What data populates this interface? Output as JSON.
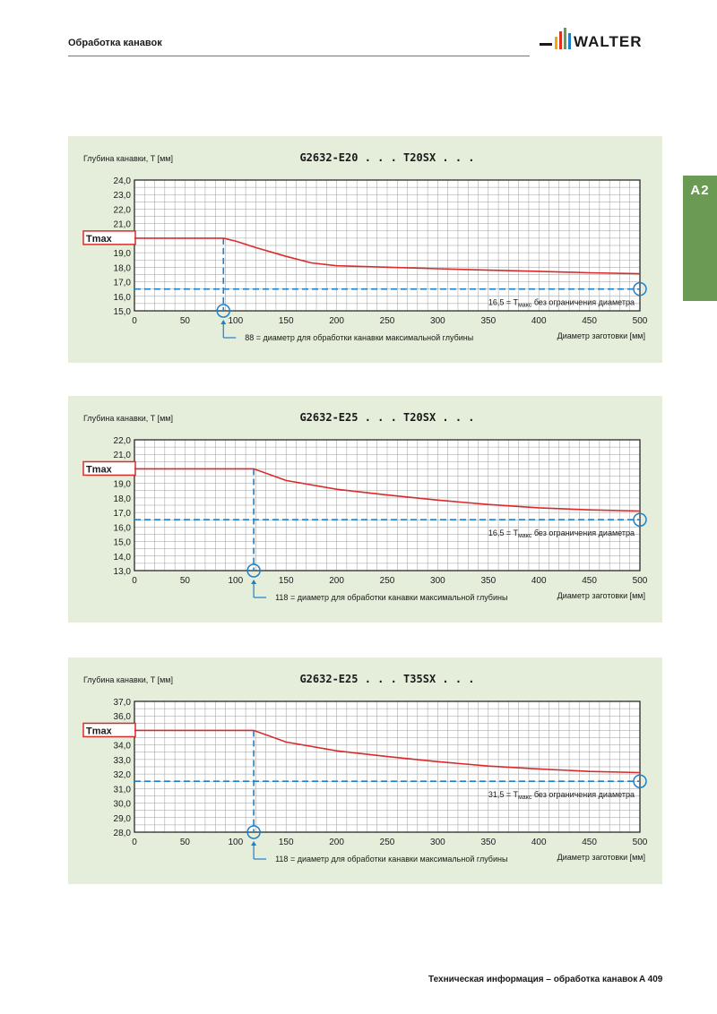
{
  "header": {
    "title": "Обработка канавок",
    "brand": "WALTER"
  },
  "side_tab": {
    "label": "A2"
  },
  "footer": {
    "text": "Техническая информация – обработка канавок",
    "page": "A 409"
  },
  "chart_data": [
    {
      "type": "line",
      "title": "G2632-E20 . . . T20SX . . .",
      "ylabel": "Глубина канавки, T [мм]",
      "xlabel": "Диаметр заготовки [мм]",
      "xlim": [
        0,
        500
      ],
      "ylim": [
        15,
        24
      ],
      "x_ticks": [
        "0",
        "50",
        "100",
        "150",
        "200",
        "250",
        "300",
        "350",
        "400",
        "450",
        "500"
      ],
      "y_ticks": [
        "15,0",
        "16,0",
        "17,0",
        "18,0",
        "19,0",
        "20,0",
        "21,0",
        "22,0",
        "23,0",
        "24,0"
      ],
      "tmax_label": "Tmax",
      "tmax_value": 20,
      "min_value": 16.5,
      "max_depth_diameter": 88,
      "series": [
        {
          "x": [
            0,
            88,
            100,
            120,
            150,
            175,
            200,
            250,
            300,
            350,
            400,
            450,
            500
          ],
          "y": [
            20,
            20,
            19.8,
            19.35,
            18.75,
            18.3,
            18.1,
            18.0,
            17.9,
            17.8,
            17.72,
            17.62,
            17.55
          ]
        }
      ],
      "annotation_right_prefix": "16,5 = T",
      "annotation_right_sub": "макс",
      "annotation_right_suffix": " без ограничения диаметра",
      "annotation_bottom": "88 = диаметр для обработки канавки максимальной глубины",
      "grid": true
    },
    {
      "type": "line",
      "title": "G2632-E25 . . . T20SX . . .",
      "ylabel": "Глубина канавки, T [мм]",
      "xlabel": "Диаметр заготовки [мм]",
      "xlim": [
        0,
        500
      ],
      "ylim": [
        13,
        22
      ],
      "x_ticks": [
        "0",
        "50",
        "100",
        "150",
        "200",
        "250",
        "300",
        "350",
        "400",
        "450",
        "500"
      ],
      "y_ticks": [
        "13,0",
        "14,0",
        "15,0",
        "16,0",
        "17,0",
        "18,0",
        "19,0",
        "20,0",
        "21,0",
        "22,0"
      ],
      "tmax_label": "Tmax",
      "tmax_value": 20,
      "min_value": 16.5,
      "max_depth_diameter": 118,
      "series": [
        {
          "x": [
            0,
            118,
            150,
            200,
            250,
            300,
            350,
            400,
            450,
            500
          ],
          "y": [
            20,
            20,
            19.2,
            18.6,
            18.2,
            17.85,
            17.55,
            17.32,
            17.18,
            17.1
          ]
        }
      ],
      "annotation_right_prefix": "16,5 = T",
      "annotation_right_sub": "макс",
      "annotation_right_suffix": " без ограничения диаметра",
      "annotation_bottom": "118 = диаметр для обработки канавки максимальной глубины",
      "grid": true
    },
    {
      "type": "line",
      "title": "G2632-E25 . . . T35SX . . .",
      "ylabel": "Глубина канавки, T [мм]",
      "xlabel": "Диаметр заготовки [мм]",
      "xlim": [
        0,
        500
      ],
      "ylim": [
        28,
        37
      ],
      "x_ticks": [
        "0",
        "50",
        "100",
        "150",
        "200",
        "250",
        "300",
        "350",
        "400",
        "450",
        "500"
      ],
      "y_ticks": [
        "28,0",
        "29,0",
        "30,0",
        "31,0",
        "32,0",
        "33,0",
        "34,0",
        "35,0",
        "36,0",
        "37,0"
      ],
      "tmax_label": "Tmax",
      "tmax_value": 35,
      "min_value": 31.5,
      "max_depth_diameter": 118,
      "series": [
        {
          "x": [
            0,
            118,
            150,
            200,
            250,
            300,
            350,
            400,
            450,
            500
          ],
          "y": [
            35,
            35,
            34.2,
            33.6,
            33.2,
            32.85,
            32.55,
            32.35,
            32.18,
            32.1
          ]
        }
      ],
      "annotation_right_prefix": "31,5 = T",
      "annotation_right_sub": "макс",
      "annotation_right_suffix": " без ограничения диаметра",
      "annotation_bottom": "118 = диаметр для обработки канавки максимальной глубины",
      "grid": true
    }
  ],
  "colors": {
    "curve": "#d92b2b",
    "guide": "#1f7fc8",
    "panel": "#e5eedb",
    "grid": "#9a9a9a",
    "tab": "#6b9a55"
  }
}
